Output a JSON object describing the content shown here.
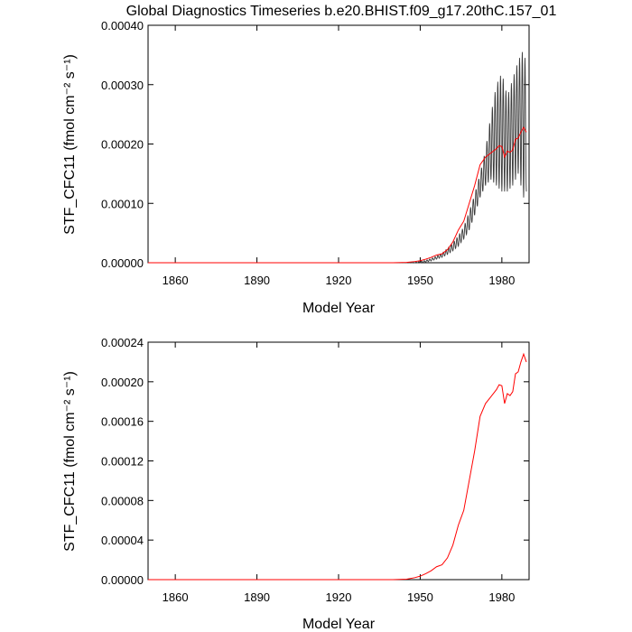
{
  "title": "Global Diagnostics Timeseries b.e20.BHIST.f09_g17.20thC.157_01",
  "colors": {
    "monthly": "#3a3a3a",
    "annual": "#ff0000",
    "axis": "#000000"
  },
  "chart_data": [
    {
      "type": "line",
      "xlabel": "Model Year",
      "ylabel": "STF_CFC11 (fmol cm⁻² s⁻¹)",
      "xlim": [
        1850,
        1990
      ],
      "ylim": [
        0,
        0.0004
      ],
      "xticks": [
        1860,
        1890,
        1920,
        1950,
        1980
      ],
      "xtick_labels": [
        "1860",
        "1890",
        "1920",
        "1950",
        "1980"
      ],
      "yticks": [
        0,
        0.0001,
        0.0002,
        0.0003,
        0.0004
      ],
      "ytick_labels": [
        "0.00000",
        "0.00010",
        "0.00020",
        "0.00030",
        "0.00040"
      ],
      "grid": false,
      "series": [
        {
          "style": "monthly",
          "x": [
            1850,
            1940,
            1945,
            1948,
            1950,
            1952,
            1954,
            1956,
            1958,
            1960,
            1962,
            1964,
            1966,
            1968,
            1970,
            1972,
            1974,
            1976,
            1978,
            1980,
            1982,
            1984,
            1986,
            1988,
            1989
          ],
          "ymax": [
            0,
            0,
            1e-07,
            8e-07,
            2e-06,
            4e-06,
            7e-06,
            1.1e-05,
            1.6e-05,
            2.4e-05,
            3.3e-05,
            4.5e-05,
            6e-05,
            8.5e-05,
            0.000115,
            0.00015,
            0.00019,
            0.00025,
            0.0003,
            0.00032,
            0.00028,
            0.00031,
            0.00034,
            0.00036,
            0.00033
          ],
          "ymin": [
            0,
            0,
            0,
            0,
            0,
            1e-06,
            3e-06,
            6e-06,
            9e-06,
            1.4e-05,
            2e-05,
            2.8e-05,
            4e-05,
            5.5e-05,
            8e-05,
            0.00011,
            0.00013,
            0.00014,
            0.00013,
            0.00012,
            0.00012,
            0.00013,
            0.00015,
            0.00011,
            0.00012
          ]
        },
        {
          "style": "annual",
          "x": [
            1850,
            1940,
            1945,
            1948,
            1950,
            1952,
            1954,
            1956,
            1958,
            1960,
            1962,
            1964,
            1966,
            1968,
            1970,
            1972,
            1974,
            1976,
            1978,
            1979,
            1980,
            1981,
            1982,
            1983,
            1984,
            1985,
            1986,
            1987,
            1988,
            1989
          ],
          "y": [
            0,
            0,
            5e-07,
            2e-06,
            3.5e-06,
            6e-06,
            9e-06,
            1.3e-05,
            1.5e-05,
            2.2e-05,
            3.5e-05,
            5.5e-05,
            7e-05,
            0.0001,
            0.00013,
            0.000165,
            0.000178,
            0.000185,
            0.000192,
            0.000197,
            0.000196,
            0.000178,
            0.000188,
            0.000186,
            0.00019,
            0.000208,
            0.00021,
            0.00022,
            0.000228,
            0.00022
          ]
        }
      ]
    },
    {
      "type": "line",
      "xlabel": "Model Year",
      "ylabel": "STF_CFC11 (fmol cm⁻² s⁻¹)",
      "xlim": [
        1850,
        1990
      ],
      "ylim": [
        0,
        0.00024
      ],
      "xticks": [
        1860,
        1890,
        1920,
        1950,
        1980
      ],
      "xtick_labels": [
        "1860",
        "1890",
        "1920",
        "1950",
        "1980"
      ],
      "yticks": [
        0,
        4e-05,
        8e-05,
        0.00012,
        0.00016,
        0.0002,
        0.00024
      ],
      "ytick_labels": [
        "0.00000",
        "0.00004",
        "0.00008",
        "0.00012",
        "0.00016",
        "0.00020",
        "0.00024"
      ],
      "grid": false,
      "series": [
        {
          "style": "annual",
          "x": [
            1850,
            1940,
            1945,
            1948,
            1950,
            1952,
            1954,
            1956,
            1958,
            1960,
            1962,
            1964,
            1966,
            1968,
            1970,
            1972,
            1974,
            1976,
            1978,
            1979,
            1980,
            1981,
            1982,
            1983,
            1984,
            1985,
            1986,
            1987,
            1988,
            1989
          ],
          "y": [
            0,
            0,
            5e-07,
            2e-06,
            3.5e-06,
            6e-06,
            9e-06,
            1.3e-05,
            1.5e-05,
            2.2e-05,
            3.5e-05,
            5.5e-05,
            7e-05,
            0.0001,
            0.00013,
            0.000165,
            0.000178,
            0.000185,
            0.000192,
            0.000197,
            0.000196,
            0.000178,
            0.000188,
            0.000186,
            0.00019,
            0.000208,
            0.00021,
            0.00022,
            0.000228,
            0.00022
          ]
        }
      ]
    }
  ]
}
